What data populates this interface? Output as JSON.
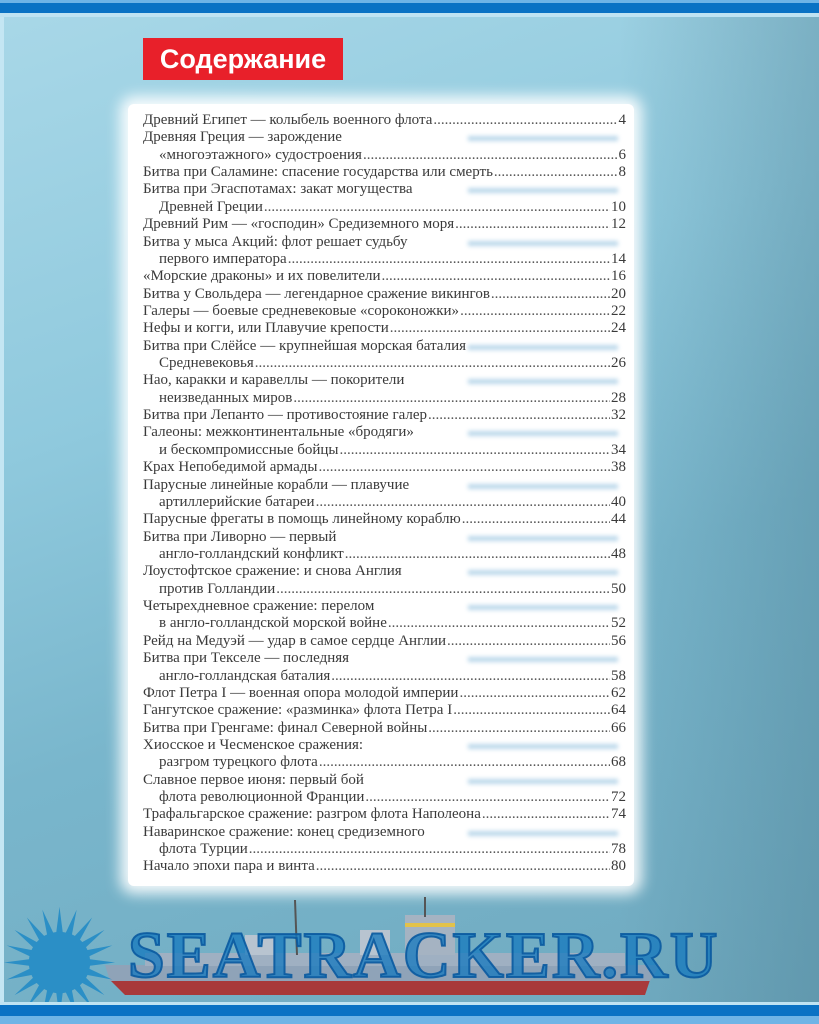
{
  "title": "Содержание",
  "watermark": "SEATRACKER.RU",
  "colors": {
    "title_bg": "#e8202a",
    "bars": "#0a72c4",
    "watermark": "#1478be"
  },
  "toc": [
    {
      "lines": [
        "Древний Египет — колыбель военного флота"
      ],
      "page": "4"
    },
    {
      "lines": [
        "Древняя Греция — зарождение",
        "«многоэтажного» судостроения"
      ],
      "page": "6"
    },
    {
      "lines": [
        "Битва при Саламине: спасение государства или смерть"
      ],
      "page": "8"
    },
    {
      "lines": [
        "Битва при Эгаспотамах: закат могущества",
        "Древней Греции"
      ],
      "page": "10"
    },
    {
      "lines": [
        "Древний Рим — «господин» Средиземного моря"
      ],
      "page": "12"
    },
    {
      "lines": [
        "Битва у мыса Акций: флот решает судьбу",
        "первого императора"
      ],
      "page": "14"
    },
    {
      "lines": [
        "«Морские драконы» и их повелители"
      ],
      "page": "16"
    },
    {
      "lines": [
        "Битва у Свольдера — легендарное сражение викингов"
      ],
      "page": "20"
    },
    {
      "lines": [
        "Галеры — боевые средневековые «сороконожки»"
      ],
      "page": "22"
    },
    {
      "lines": [
        "Нефы и когги, или Плавучие крепости"
      ],
      "page": "24"
    },
    {
      "lines": [
        "Битва при Слёйсе — крупнейшая морская баталия",
        "Средневековья"
      ],
      "page": "26"
    },
    {
      "lines": [
        "Нао, каракки и каравеллы — покорители",
        "неизведанных миров"
      ],
      "page": "28"
    },
    {
      "lines": [
        "Битва при Лепанто — противостояние галер"
      ],
      "page": "32"
    },
    {
      "lines": [
        "Галеоны: межконтинентальные «бродяги»",
        "и бескомпромиссные бойцы"
      ],
      "page": "34"
    },
    {
      "lines": [
        "Крах Непобедимой армады"
      ],
      "page": "38"
    },
    {
      "lines": [
        "Парусные линейные корабли — плавучие",
        "артиллерийские батареи"
      ],
      "page": "40"
    },
    {
      "lines": [
        "Парусные фрегаты в помощь линейному кораблю"
      ],
      "page": "44"
    },
    {
      "lines": [
        "Битва при Ливорно — первый",
        "англо-голландский конфликт"
      ],
      "page": "48"
    },
    {
      "lines": [
        "Лоустофтское сражение: и снова Англия",
        "против Голландии"
      ],
      "page": "50"
    },
    {
      "lines": [
        "Четырехдневное сражение: перелом",
        "в англо-голландской морской войне"
      ],
      "page": "52"
    },
    {
      "lines": [
        "Рейд на Медуэй — удар в самое сердце Англии"
      ],
      "page": "56"
    },
    {
      "lines": [
        "Битва при Текселе — последняя",
        "англо-голландская баталия"
      ],
      "page": "58"
    },
    {
      "lines": [
        "Флот Петра I — военная опора молодой империи"
      ],
      "page": "62"
    },
    {
      "lines": [
        "Гангутское сражение: «разминка» флота Петра I"
      ],
      "page": "64"
    },
    {
      "lines": [
        "Битва при Гренгаме: финал Северной войны"
      ],
      "page": "66"
    },
    {
      "lines": [
        "Хиосское и Чесменское сражения:",
        "разгром турецкого флота"
      ],
      "page": "68"
    },
    {
      "lines": [
        "Славное первое июня: первый бой",
        "флота революционной Франции"
      ],
      "page": "72"
    },
    {
      "lines": [
        "Трафальгарское сражение: разгром флота Наполеона"
      ],
      "page": "74"
    },
    {
      "lines": [
        "Наваринское сражение: конец средиземного",
        "флота Турции"
      ],
      "page": "78"
    },
    {
      "lines": [
        "Начало эпохи пара и винта"
      ],
      "page": "80"
    }
  ]
}
